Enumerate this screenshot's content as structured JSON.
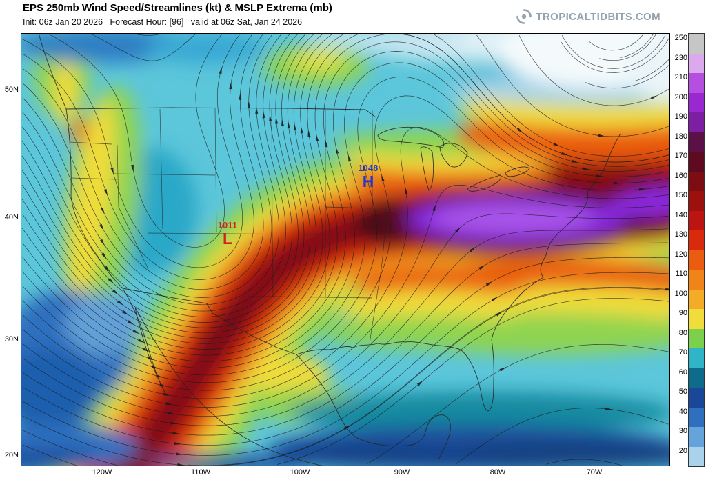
{
  "header": {
    "title": "EPS 250mb Wind Speed/Streamlines (kt) & MSLP Extrema (mb)",
    "init_line": "Init: 06z Jan 20 2026   Forecast Hour: [96]   valid at 06z Sat, Jan 24 2026",
    "brand": "TROPICALTIDBITS.COM"
  },
  "map": {
    "lat_labels": [
      "50N",
      "40N",
      "30N",
      "20N"
    ],
    "lon_labels": [
      "120W",
      "110W",
      "100W",
      "90W",
      "80W",
      "70W"
    ],
    "markers": {
      "high": {
        "letter": "H",
        "value": "1048",
        "color": "#2438c8"
      },
      "low": {
        "letter": "L",
        "value": "1011",
        "color": "#d42020"
      }
    }
  },
  "colorbar": {
    "units": "kt",
    "entries": [
      {
        "label": "250",
        "color": "#c6c6c6"
      },
      {
        "label": "230",
        "color": "#dcaaec"
      },
      {
        "label": "210",
        "color": "#b44fe0"
      },
      {
        "label": "200",
        "color": "#9a28d0"
      },
      {
        "label": "190",
        "color": "#7d1fa2"
      },
      {
        "label": "180",
        "color": "#5c1048"
      },
      {
        "label": "170",
        "color": "#5e0b22"
      },
      {
        "label": "160",
        "color": "#7c0d12"
      },
      {
        "label": "150",
        "color": "#9c100e"
      },
      {
        "label": "140",
        "color": "#bc1410"
      },
      {
        "label": "130",
        "color": "#da2a0e"
      },
      {
        "label": "120",
        "color": "#ea5c10"
      },
      {
        "label": "110",
        "color": "#f08418"
      },
      {
        "label": "100",
        "color": "#f4ac28"
      },
      {
        "label": "90",
        "color": "#f0dc3a"
      },
      {
        "label": "80",
        "color": "#7cd14c"
      },
      {
        "label": "70",
        "color": "#2fb4c8"
      },
      {
        "label": "60",
        "color": "#0f6b8c"
      },
      {
        "label": "50",
        "color": "#1a4898"
      },
      {
        "label": "40",
        "color": "#2f6fc0"
      },
      {
        "label": "30",
        "color": "#64a4da"
      },
      {
        "label": "20",
        "color": "#abd2ec"
      }
    ]
  }
}
